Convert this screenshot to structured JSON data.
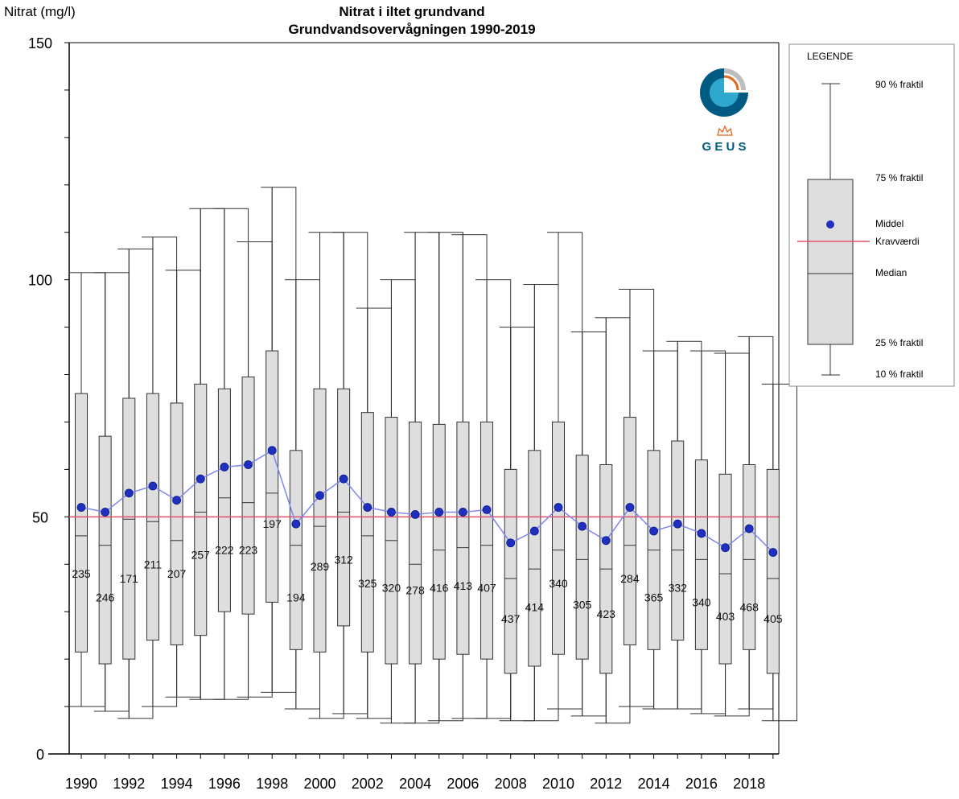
{
  "chart_data": {
    "type": "box",
    "title": "Nitrat i iltet grundvand",
    "subtitle": "Grundvandsovervågningen 1990-2019",
    "ylabel": "Nitrat (mg/l)",
    "xlabel": "",
    "ylim": [
      0,
      150
    ],
    "y_ticks": [
      "0",
      "50",
      "100",
      "150"
    ],
    "x_tick_labels": [
      "1990",
      "1992",
      "1994",
      "1996",
      "1998",
      "2000",
      "2002",
      "2004",
      "2006",
      "2008",
      "2010",
      "2012",
      "2014",
      "2016",
      "2018"
    ],
    "reference_line": {
      "name": "Kravværdi",
      "value": 50,
      "color": "#e0506a"
    },
    "colors": {
      "box_fill": "#dedede",
      "mean_marker": "#1f2fc0",
      "mean_line": "#7f86ee",
      "outline": "#333333"
    },
    "years": [
      1990,
      1991,
      1992,
      1993,
      1994,
      1995,
      1996,
      1997,
      1998,
      1999,
      2000,
      2001,
      2002,
      2003,
      2004,
      2005,
      2006,
      2007,
      2008,
      2009,
      2010,
      2011,
      2012,
      2013,
      2014,
      2015,
      2016,
      2017,
      2018,
      2019
    ],
    "p10": [
      10,
      9,
      7.5,
      10,
      12,
      11.5,
      11.5,
      12,
      13,
      9.5,
      7.5,
      8.5,
      7.5,
      6.5,
      6.5,
      7,
      7.5,
      7.5,
      7,
      7,
      9.5,
      8,
      6.5,
      10,
      9.5,
      9.5,
      8.5,
      8,
      9.5,
      7
    ],
    "p25": [
      21.5,
      19,
      20,
      24,
      23,
      25,
      30,
      29.5,
      32,
      22,
      21.5,
      27,
      21.5,
      19,
      19,
      20,
      21,
      20,
      17,
      18.5,
      21,
      20,
      17,
      23,
      22,
      24,
      22,
      19,
      22,
      17
    ],
    "median": [
      46,
      44,
      49.5,
      49,
      45,
      51,
      54,
      53,
      55,
      44,
      48,
      51,
      46,
      45,
      40,
      43,
      43.5,
      44,
      37,
      39,
      43,
      41,
      39,
      44,
      43,
      43,
      41,
      38,
      41,
      37
    ],
    "mean": [
      52,
      51,
      55,
      56.5,
      53.5,
      58,
      60.5,
      61,
      64,
      48.5,
      54.5,
      58,
      52,
      51,
      50.5,
      51,
      51,
      51.5,
      44.5,
      47,
      52,
      48,
      45,
      52,
      47,
      48.5,
      46.5,
      43.5,
      47.5,
      42.5
    ],
    "p75": [
      76,
      67,
      75,
      76,
      74,
      78,
      77,
      79.5,
      85,
      64,
      77,
      77,
      72,
      71,
      70,
      69.5,
      70,
      70,
      60,
      64,
      70,
      63,
      61,
      71,
      64,
      66,
      62,
      59,
      61,
      60
    ],
    "p90": [
      101.5,
      101.5,
      106.5,
      109,
      102,
      115,
      115,
      108,
      119.5,
      100,
      110,
      110,
      94,
      100,
      110,
      110,
      109.5,
      100,
      90,
      99,
      110,
      89,
      92,
      98,
      85,
      87,
      85,
      84.5,
      88,
      78
    ],
    "n": [
      "235",
      "246",
      "171",
      "211",
      "207",
      "257",
      "222",
      "223",
      "197",
      "194",
      "289",
      "312",
      "325",
      "320",
      "278",
      "416",
      "413",
      "407",
      "437",
      "414",
      "340",
      "305",
      "423",
      "284",
      "365",
      "332",
      "340",
      "403",
      "468",
      "405"
    ],
    "n_label_y": [
      38,
      33,
      37,
      40,
      38,
      42,
      43,
      43,
      48.5,
      33,
      39.5,
      41,
      36,
      35,
      34.5,
      35,
      35.5,
      35,
      28.5,
      31,
      36,
      31.5,
      29.5,
      37,
      33,
      35,
      32,
      29,
      31,
      28.5
    ],
    "legend": {
      "title": "LEGENDE",
      "p90": "90 % fraktil",
      "p75": "75 % fraktil",
      "mean": "Middel",
      "limit": "Kravværdi",
      "median": "Median",
      "p25": "25 % fraktil",
      "p10": "10 % fraktil"
    },
    "logo_text": "G E U S"
  }
}
